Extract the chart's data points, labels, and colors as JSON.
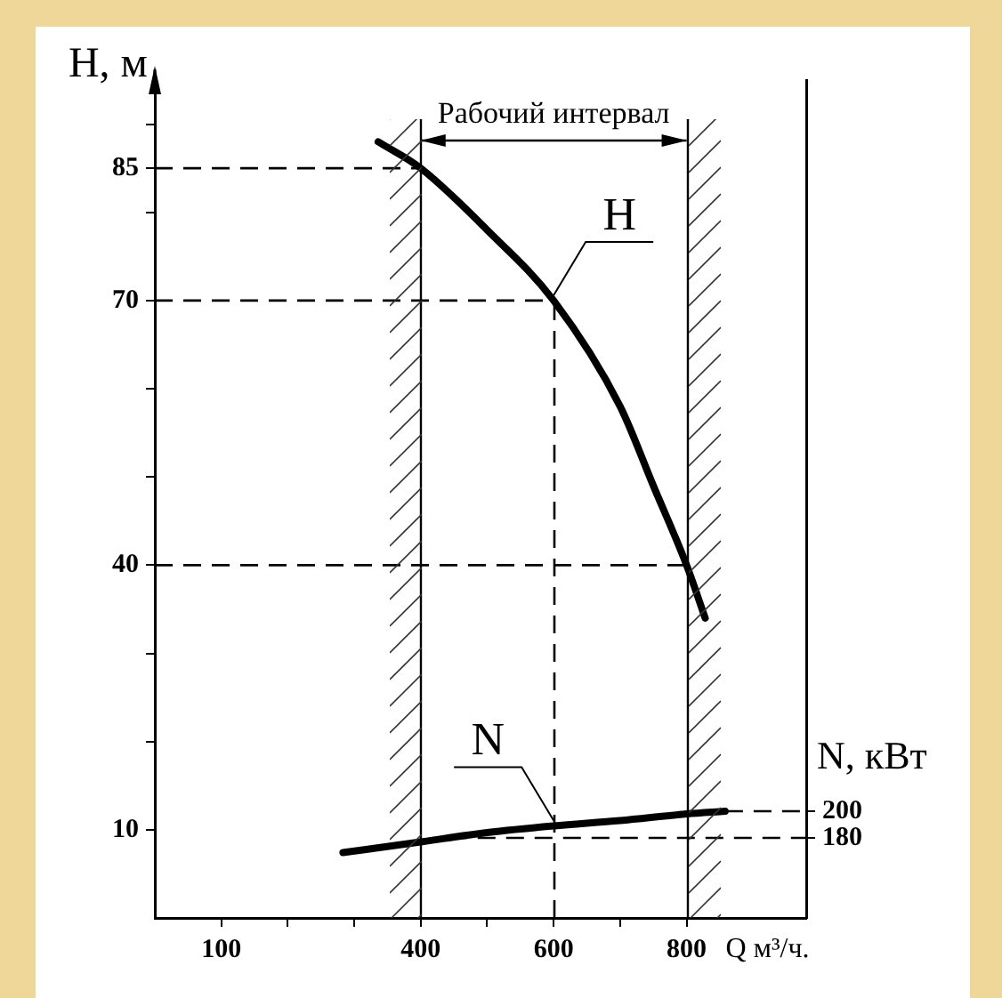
{
  "chart_data": {
    "type": "line",
    "xlabel": "Q м³/ч.",
    "ylabel": "H, м",
    "y2label": "N, кВт",
    "xlim": [
      0,
      980
    ],
    "xticks": [
      100,
      {
        "value": 200,
        "label": null
      },
      {
        "value": 300,
        "label": null
      },
      400,
      {
        "value": 500,
        "label": null
      },
      600,
      {
        "value": 700,
        "label": null
      },
      800
    ],
    "ylim": [
      0,
      95
    ],
    "yticks": [
      10,
      {
        "value": 20,
        "label": null
      },
      {
        "value": 30,
        "label": null
      },
      40,
      {
        "value": 50,
        "label": null
      },
      {
        "value": 60,
        "label": null
      },
      70,
      {
        "value": 80,
        "label": null
      },
      85,
      {
        "value": 90,
        "label": null
      }
    ],
    "y2lim": [
      120,
      748
    ],
    "y2ticks": [
      180,
      200
    ],
    "series": [
      {
        "name": "H",
        "color": "#000000",
        "x": [
          336,
          400,
          500,
          600,
          700,
          750,
          800,
          828
        ],
        "values": [
          88,
          85,
          78,
          70,
          58,
          49,
          40,
          34
        ]
      },
      {
        "name": "N",
        "color": "#000000",
        "axis": "y2",
        "x": [
          283,
          400,
          500,
          600,
          700,
          800,
          858
        ],
        "values": [
          169,
          177,
          184,
          189,
          193,
          198,
          200
        ]
      }
    ],
    "ref_lines": [
      {
        "axis": "y",
        "value": 85,
        "line_style": "dashed"
      },
      {
        "axis": "y",
        "value": 70,
        "line_style": "dashed"
      },
      {
        "axis": "y",
        "value": 40,
        "line_style": "dashed"
      },
      {
        "axis": "x",
        "value": 600,
        "line_style": "dashed"
      },
      {
        "axis": "x",
        "value": 400,
        "line_style": "solid"
      },
      {
        "axis": "x",
        "value": 800,
        "line_style": "solid"
      },
      {
        "axis": "y2",
        "value": 200,
        "line_style": "dashed"
      },
      {
        "axis": "y2",
        "value": 180,
        "line_style": "dashed"
      }
    ],
    "annotations": [
      "Рабочий интервал"
    ],
    "grid": false,
    "legend": false,
    "marker": "none",
    "line_style": "solid"
  }
}
